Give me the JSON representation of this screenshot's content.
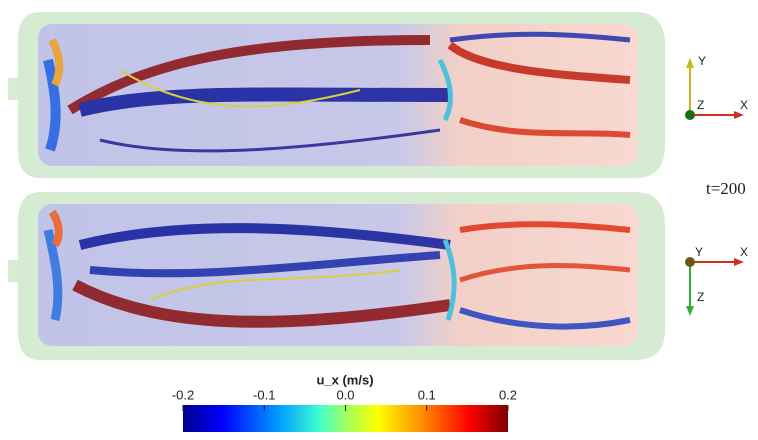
{
  "time_label": "t=200",
  "triads": [
    {
      "y": "Y",
      "x": "X",
      "z": "Z"
    },
    {
      "y": "Y",
      "x": "X",
      "z": "Z"
    }
  ],
  "colorbar": {
    "title": "u_x (m/s)",
    "lim": [
      -0.2,
      0.2
    ],
    "ticks": [
      -0.2,
      -0.1,
      {
        "value": 0,
        "label": "0.0"
      },
      0.1,
      0.2
    ]
  }
}
